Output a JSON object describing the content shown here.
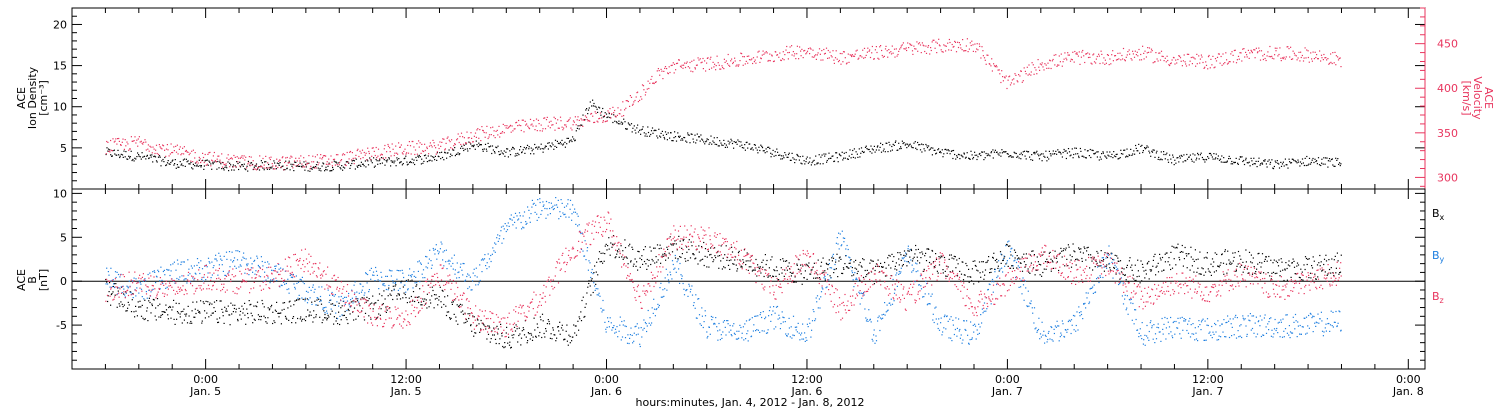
{
  "chart_data": [
    {
      "type": "scatter",
      "panel": "top",
      "ylabel_left": [
        "ACE",
        "Ion Density",
        "[cm⁻³]"
      ],
      "ylabel_right": [
        "ACE",
        "Velocity",
        "[km/s]"
      ],
      "ylim_left": [
        0,
        22
      ],
      "ylim_right": [
        287,
        490
      ],
      "yticks_left": [
        5,
        10,
        15,
        20
      ],
      "yticks_right": [
        300,
        350,
        400,
        450
      ],
      "right_axis_color": "#e8355e",
      "series": [
        {
          "axis": "left",
          "color": "#000000",
          "x": [
            "2012-01-04T18:00",
            "2012-01-04T20:00",
            "2012-01-04T22:00",
            "2012-01-05T00:00",
            "2012-01-05T02:00",
            "2012-01-05T04:00",
            "2012-01-05T06:00",
            "2012-01-05T08:00",
            "2012-01-05T10:00",
            "2012-01-05T12:00",
            "2012-01-05T14:00",
            "2012-01-05T16:00",
            "2012-01-05T18:00",
            "2012-01-05T20:00",
            "2012-01-05T22:00",
            "2012-01-05T23:00",
            "2012-01-06T00:00",
            "2012-01-06T01:00",
            "2012-01-06T02:00",
            "2012-01-06T04:00",
            "2012-01-06T06:00",
            "2012-01-06T08:00",
            "2012-01-06T10:00",
            "2012-01-06T12:00",
            "2012-01-06T14:00",
            "2012-01-06T16:00",
            "2012-01-06T18:00",
            "2012-01-06T20:00",
            "2012-01-06T22:00",
            "2012-01-07T00:00",
            "2012-01-07T02:00",
            "2012-01-07T04:00",
            "2012-01-07T06:00",
            "2012-01-07T08:00",
            "2012-01-07T10:00",
            "2012-01-07T12:00",
            "2012-01-07T14:00",
            "2012-01-07T16:00",
            "2012-01-07T18:00",
            "2012-01-07T20:00"
          ],
          "y": [
            4.5,
            4.0,
            3.2,
            3.0,
            2.8,
            3.0,
            2.8,
            2.9,
            3.3,
            3.5,
            4.0,
            5.5,
            4.5,
            5.0,
            6.0,
            10.5,
            9.0,
            8.0,
            7.2,
            6.5,
            6.0,
            5.5,
            4.5,
            3.5,
            4.0,
            5.0,
            5.5,
            4.5,
            4.0,
            4.5,
            4.0,
            4.5,
            4.0,
            5.0,
            3.5,
            4.0,
            3.5,
            3.0,
            3.5,
            3.2
          ]
        },
        {
          "axis": "right",
          "color": "#e8355e",
          "x": [
            "2012-01-04T18:00",
            "2012-01-04T20:00",
            "2012-01-04T22:00",
            "2012-01-05T00:00",
            "2012-01-05T02:00",
            "2012-01-05T04:00",
            "2012-01-05T06:00",
            "2012-01-05T08:00",
            "2012-01-05T10:00",
            "2012-01-05T12:00",
            "2012-01-05T14:00",
            "2012-01-05T16:00",
            "2012-01-05T18:00",
            "2012-01-05T20:00",
            "2012-01-05T22:00",
            "2012-01-06T00:00",
            "2012-01-06T01:00",
            "2012-01-06T02:00",
            "2012-01-06T03:00",
            "2012-01-06T04:00",
            "2012-01-06T06:00",
            "2012-01-06T08:00",
            "2012-01-06T10:00",
            "2012-01-06T12:00",
            "2012-01-06T14:00",
            "2012-01-06T16:00",
            "2012-01-06T18:00",
            "2012-01-06T20:00",
            "2012-01-06T22:00",
            "2012-01-07T00:00",
            "2012-01-07T02:00",
            "2012-01-07T04:00",
            "2012-01-07T06:00",
            "2012-01-07T08:00",
            "2012-01-07T10:00",
            "2012-01-07T12:00",
            "2012-01-07T14:00",
            "2012-01-07T16:00",
            "2012-01-07T18:00",
            "2012-01-07T20:00"
          ],
          "y": [
            335,
            340,
            330,
            322,
            318,
            316,
            318,
            320,
            328,
            333,
            335,
            348,
            355,
            360,
            362,
            370,
            378,
            395,
            415,
            425,
            428,
            432,
            438,
            443,
            435,
            440,
            445,
            448,
            450,
            405,
            428,
            435,
            435,
            440,
            432,
            430,
            438,
            440,
            438,
            432
          ]
        }
      ]
    },
    {
      "type": "scatter",
      "panel": "bottom",
      "ylabel_left": [
        "ACE",
        "B",
        "[nT]"
      ],
      "ylim": [
        -10,
        10.5
      ],
      "yticks": [
        -5,
        0,
        5,
        10
      ],
      "legend_placement": "right",
      "series": [
        {
          "name": "Bx",
          "color": "#000000",
          "x": [
            "2012-01-04T18:00",
            "2012-01-04T20:00",
            "2012-01-04T22:00",
            "2012-01-05T00:00",
            "2012-01-05T02:00",
            "2012-01-05T04:00",
            "2012-01-05T06:00",
            "2012-01-05T08:00",
            "2012-01-05T10:00",
            "2012-01-05T12:00",
            "2012-01-05T14:00",
            "2012-01-05T16:00",
            "2012-01-05T18:00",
            "2012-01-05T20:00",
            "2012-01-05T22:00",
            "2012-01-06T00:00",
            "2012-01-06T02:00",
            "2012-01-06T04:00",
            "2012-01-06T06:00",
            "2012-01-06T08:00",
            "2012-01-06T10:00",
            "2012-01-06T12:00",
            "2012-01-06T14:00",
            "2012-01-06T16:00",
            "2012-01-06T18:00",
            "2012-01-06T20:00",
            "2012-01-06T22:00",
            "2012-01-07T00:00",
            "2012-01-07T02:00",
            "2012-01-07T04:00",
            "2012-01-07T06:00",
            "2012-01-07T08:00",
            "2012-01-07T10:00",
            "2012-01-07T12:00",
            "2012-01-07T14:00",
            "2012-01-07T16:00",
            "2012-01-07T18:00",
            "2012-01-07T20:00"
          ],
          "y": [
            -1.0,
            -3.0,
            -3.5,
            -3.5,
            -3.5,
            -3.5,
            -3.2,
            -3.5,
            -3.0,
            -1.0,
            -2.0,
            -5.0,
            -6.5,
            -5.0,
            -6.0,
            4.5,
            2.5,
            4.0,
            3.0,
            2.5,
            1.5,
            1.0,
            2.0,
            1.0,
            3.0,
            2.0,
            1.0,
            3.0,
            2.0,
            3.0,
            2.0,
            1.0,
            3.0,
            2.0,
            2.5,
            1.5,
            1.5,
            2.0
          ]
        },
        {
          "name": "By",
          "color": "#1e7fe0",
          "x": [
            "2012-01-04T18:00",
            "2012-01-04T20:00",
            "2012-01-04T22:00",
            "2012-01-05T00:00",
            "2012-01-05T02:00",
            "2012-01-05T04:00",
            "2012-01-05T06:00",
            "2012-01-05T08:00",
            "2012-01-05T10:00",
            "2012-01-05T12:00",
            "2012-01-05T14:00",
            "2012-01-05T16:00",
            "2012-01-05T18:00",
            "2012-01-05T20:00",
            "2012-01-05T22:00",
            "2012-01-06T00:00",
            "2012-01-06T02:00",
            "2012-01-06T04:00",
            "2012-01-06T06:00",
            "2012-01-06T08:00",
            "2012-01-06T10:00",
            "2012-01-06T12:00",
            "2012-01-06T14:00",
            "2012-01-06T16:00",
            "2012-01-06T18:00",
            "2012-01-06T20:00",
            "2012-01-06T22:00",
            "2012-01-07T00:00",
            "2012-01-07T02:00",
            "2012-01-07T04:00",
            "2012-01-07T06:00",
            "2012-01-07T08:00",
            "2012-01-07T10:00",
            "2012-01-07T12:00",
            "2012-01-07T14:00",
            "2012-01-07T16:00",
            "2012-01-07T18:00",
            "2012-01-07T20:00"
          ],
          "y": [
            0.5,
            -1.0,
            1.0,
            1.5,
            2.5,
            1.0,
            -1.0,
            -3.0,
            0.5,
            0.0,
            3.5,
            0.0,
            6.0,
            8.5,
            8.0,
            -5.0,
            -6.0,
            2.0,
            -5.0,
            -6.0,
            -4.0,
            -6.0,
            5.0,
            -6.0,
            3.0,
            -5.0,
            -6.0,
            4.0,
            -6.0,
            -5.0,
            3.0,
            -6.0,
            -5.0,
            -5.5,
            -5.0,
            -5.0,
            -5.0,
            -4.5
          ]
        },
        {
          "name": "Bz",
          "color": "#e8355e",
          "x": [
            "2012-01-04T18:00",
            "2012-01-04T20:00",
            "2012-01-04T22:00",
            "2012-01-05T00:00",
            "2012-01-05T02:00",
            "2012-01-05T04:00",
            "2012-01-05T06:00",
            "2012-01-05T08:00",
            "2012-01-05T10:00",
            "2012-01-05T12:00",
            "2012-01-05T14:00",
            "2012-01-05T16:00",
            "2012-01-05T18:00",
            "2012-01-05T20:00",
            "2012-01-05T22:00",
            "2012-01-06T00:00",
            "2012-01-06T02:00",
            "2012-01-06T04:00",
            "2012-01-06T06:00",
            "2012-01-06T08:00",
            "2012-01-06T10:00",
            "2012-01-06T12:00",
            "2012-01-06T14:00",
            "2012-01-06T16:00",
            "2012-01-06T18:00",
            "2012-01-06T20:00",
            "2012-01-06T22:00",
            "2012-01-07T00:00",
            "2012-01-07T02:00",
            "2012-01-07T04:00",
            "2012-01-07T06:00",
            "2012-01-07T08:00",
            "2012-01-07T10:00",
            "2012-01-07T12:00",
            "2012-01-07T14:00",
            "2012-01-07T16:00",
            "2012-01-07T18:00",
            "2012-01-07T20:00"
          ],
          "y": [
            -1.0,
            0.0,
            -1.0,
            0.5,
            0.0,
            0.5,
            2.5,
            -1.0,
            -4.0,
            -4.0,
            1.0,
            -4.0,
            -5.0,
            -2.0,
            4.0,
            7.0,
            -2.0,
            5.0,
            5.0,
            3.0,
            -1.0,
            3.0,
            -3.0,
            1.0,
            -2.0,
            2.0,
            -3.0,
            0.0,
            3.0,
            1.0,
            2.0,
            -2.0,
            0.0,
            -1.0,
            1.0,
            -1.0,
            0.0,
            1.0
          ]
        }
      ],
      "legend": [
        {
          "label": "B",
          "sub": "x",
          "color": "#000000"
        },
        {
          "label": "B",
          "sub": "y",
          "color": "#1e7fe0"
        },
        {
          "label": "B",
          "sub": "z",
          "color": "#e8355e"
        }
      ]
    }
  ],
  "x_axis": {
    "range": [
      "2012-01-04T16:00",
      "2012-01-08T01:00"
    ],
    "ticks": [
      {
        "time": "2012-01-05T00:00",
        "label": "0:00",
        "date": "Jan. 5"
      },
      {
        "time": "2012-01-05T12:00",
        "label": "12:00",
        "date": "Jan. 5"
      },
      {
        "time": "2012-01-06T00:00",
        "label": "0:00",
        "date": "Jan. 6"
      },
      {
        "time": "2012-01-06T12:00",
        "label": "12:00",
        "date": "Jan. 6"
      },
      {
        "time": "2012-01-07T00:00",
        "label": "0:00",
        "date": "Jan. 7"
      },
      {
        "time": "2012-01-07T12:00",
        "label": "12:00",
        "date": "Jan. 7"
      },
      {
        "time": "2012-01-08T00:00",
        "label": "0:00",
        "date": "Jan. 8"
      }
    ],
    "caption": "hours:minutes, Jan.  4, 2012 - Jan.  8, 2012"
  }
}
